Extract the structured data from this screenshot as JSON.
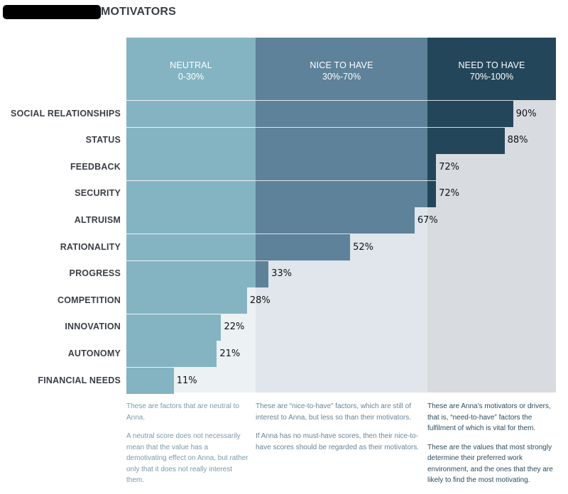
{
  "title": "MOTIVATORS",
  "colors": {
    "neutral": "#84b4c2",
    "nice": "#5d8299",
    "need": "#24465a",
    "bg_neutral": "#ecf2f4",
    "bg_nice": "#e0e6ec",
    "bg_need": "#d8dbdf"
  },
  "zones": [
    {
      "name": "NEUTRAL",
      "range": "0-30%"
    },
    {
      "name": "NICE TO HAVE",
      "range": "30%-70%"
    },
    {
      "name": "NEED TO HAVE",
      "range": "70%-100%"
    }
  ],
  "chart_data": {
    "type": "bar",
    "orientation": "horizontal",
    "categories": [
      "SOCIAL RELATIONSHIPS",
      "STATUS",
      "FEEDBACK",
      "SECURITY",
      "ALTRUISM",
      "RATIONALITY",
      "PROGRESS",
      "COMPETITION",
      "INNOVATION",
      "AUTONOMY",
      "FINANCIAL NEEDS"
    ],
    "values": [
      90,
      88,
      72,
      72,
      67,
      52,
      33,
      28,
      22,
      21,
      11
    ],
    "labels": [
      "90%",
      "88%",
      "72%",
      "72%",
      "67%",
      "52%",
      "33%",
      "28%",
      "22%",
      "21%",
      "11%"
    ],
    "xlim": [
      0,
      100
    ],
    "thresholds": [
      30,
      70
    ]
  },
  "notes": [
    [
      "These are factors that are neutral to Anna.",
      "A neutral score does not necessarily mean that the value has a demotivating effect on Anna, but rather only that it does not really interest them."
    ],
    [
      "These are “nice-to-have” factors, which are still of interest to Anna, but less so than their motivators.",
      "If Anna has no must-have scores, then their nice-to-have scores should be regarded as their motivators."
    ],
    [
      "These are Anna’s motivators or drivers, that is, “need-to-have” factors the fulfilment of which is vital for them.",
      "These are the values that most strongly determine their preferred work environment, and the ones that they are likely to find the most motivating."
    ]
  ]
}
